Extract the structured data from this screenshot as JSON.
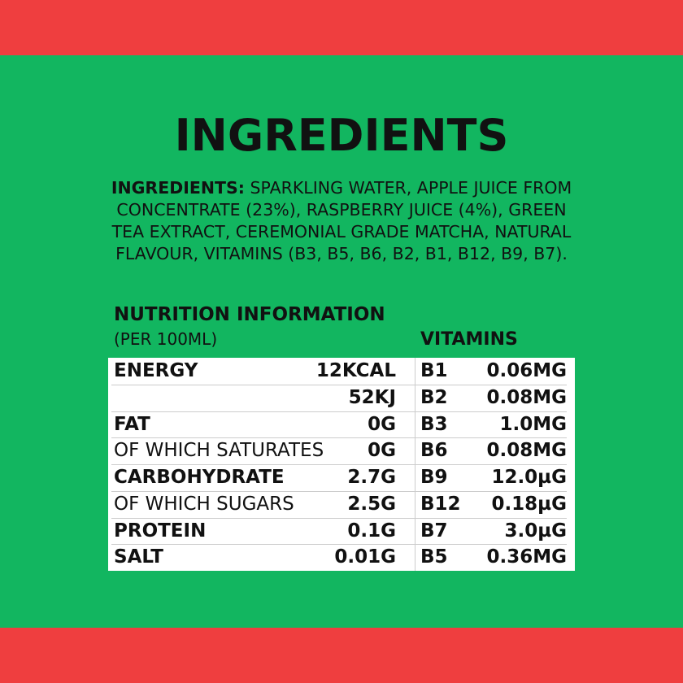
{
  "title": "INGREDIENTS",
  "ingredients": {
    "label": "INGREDIENTS:",
    "text": "SPARKLING WATER, APPLE JUICE FROM CONCENTRATE (23%), RASPBERRY JUICE (4%), GREEN TEA EXTRACT, CEREMONIAL GRADE MATCHA, NATURAL FLAVOUR, VITAMINS (B3, B5, B6, B2, B1, B12, B9, B7)."
  },
  "nutrition": {
    "heading": "NUTRITION INFORMATION",
    "subheading": "(PER 100ML)",
    "vitamins_heading": "VITAMINS",
    "rows": [
      {
        "label": "ENERGY",
        "bold": true,
        "value": "12KCAL",
        "vitamin": "B1",
        "amount": "0.06MG"
      },
      {
        "label": "",
        "bold": true,
        "value": "52KJ",
        "vitamin": "B2",
        "amount": "0.08MG"
      },
      {
        "label": "FAT",
        "bold": true,
        "value": "0G",
        "vitamin": "B3",
        "amount": "1.0MG"
      },
      {
        "label": "OF WHICH SATURATES",
        "bold": false,
        "value": "0G",
        "vitamin": "B6",
        "amount": "0.08MG"
      },
      {
        "label": "CARBOHYDRATE",
        "bold": true,
        "value": "2.7G",
        "vitamin": "B9",
        "amount": "12.0µG"
      },
      {
        "label": "OF WHICH SUGARS",
        "bold": false,
        "value": "2.5G",
        "vitamin": "B12",
        "amount": "0.18µG"
      },
      {
        "label": "PROTEIN",
        "bold": true,
        "value": "0.1G",
        "vitamin": "B7",
        "amount": "3.0µG"
      },
      {
        "label": "SALT",
        "bold": true,
        "value": "0.01G",
        "vitamin": "B5",
        "amount": "0.36MG"
      }
    ]
  },
  "colors": {
    "band": "#ef3e3f",
    "background": "#12b660",
    "table": "#ffffff"
  }
}
